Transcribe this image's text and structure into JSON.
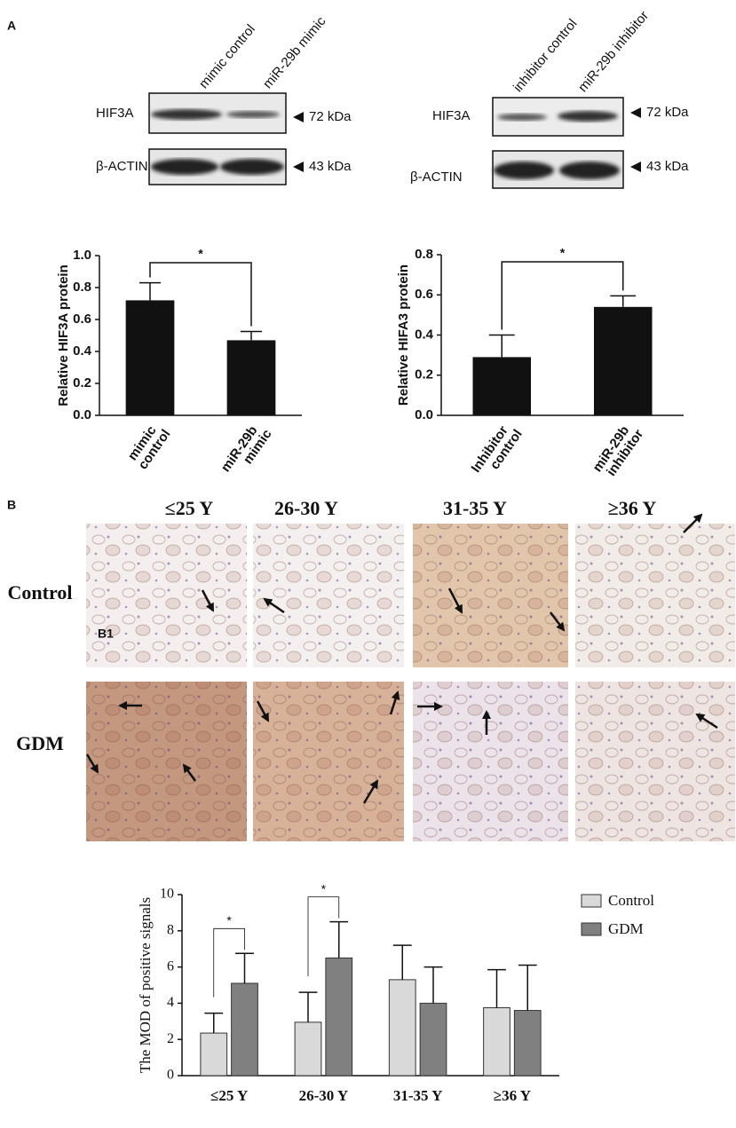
{
  "figure": {
    "panel_labels": {
      "a": "A",
      "b": "B",
      "b1": "B1"
    },
    "blots": [
      {
        "lanes": [
          "mimic control",
          "miR-29b mimic"
        ],
        "rows": [
          {
            "protein": "HIF3A",
            "size": "72 kDa"
          },
          {
            "protein": "β-ACTIN",
            "size": "43 kDa"
          }
        ]
      },
      {
        "lanes": [
          "inhibitor control",
          "miR-29b inhibitor"
        ],
        "rows": [
          {
            "protein": "HIF3A",
            "size": "72 kDa"
          },
          {
            "protein": "β-ACTIN",
            "size": "43 kDa"
          }
        ]
      }
    ],
    "histology": {
      "columns": [
        "≤25 Y",
        "26-30 Y",
        "31-35 Y",
        "≥36 Y"
      ],
      "rows": [
        "Control",
        "GDM"
      ]
    }
  },
  "chart_data": [
    {
      "type": "bar",
      "ylabel": "Relative HIF3A protein",
      "categories": [
        [
          "mimic",
          "control"
        ],
        [
          "miR-29b",
          "mimic"
        ]
      ],
      "values": [
        0.72,
        0.47
      ],
      "errors": [
        0.11,
        0.055
      ],
      "color": "#111111",
      "ylim": [
        0,
        1.0
      ],
      "yticks": [
        {
          "value": 0,
          "label": "0.0"
        },
        0.2,
        0.4,
        0.6,
        0.8,
        {
          "value": 1.0,
          "label": "1.0"
        }
      ],
      "significance": "*"
    },
    {
      "type": "bar",
      "ylabel": "Relative HIFA3 protein",
      "categories": [
        [
          "Inhibitor",
          "control"
        ],
        [
          "miR-29b",
          "inhibitor"
        ]
      ],
      "values": [
        0.29,
        0.54
      ],
      "errors": [
        0.11,
        0.055
      ],
      "color": "#111111",
      "ylim": [
        0,
        0.8
      ],
      "yticks": [
        {
          "value": 0,
          "label": "0.0"
        },
        0.2,
        0.4,
        0.6,
        0.8
      ],
      "significance": "*"
    },
    {
      "type": "grouped-bar",
      "ylabel": "The MOD of positive signals",
      "categories": [
        "≤25 Y",
        "26-30 Y",
        "31-35 Y",
        "≥36 Y"
      ],
      "series": [
        {
          "name": "Control",
          "color": "#d9d9d9",
          "values": [
            2.35,
            2.95,
            5.3,
            3.75
          ],
          "errors": [
            1.1,
            1.65,
            1.9,
            2.1
          ]
        },
        {
          "name": "GDM",
          "color": "#808080",
          "values": [
            5.1,
            6.5,
            4.0,
            3.6
          ],
          "errors": [
            1.65,
            2.0,
            2.0,
            2.5
          ]
        }
      ],
      "ylim": [
        0,
        10
      ],
      "yticks": [
        0,
        2,
        4,
        6,
        8,
        10
      ],
      "significance": [
        "*",
        "*",
        null,
        null
      ],
      "legend": "upper right"
    }
  ]
}
